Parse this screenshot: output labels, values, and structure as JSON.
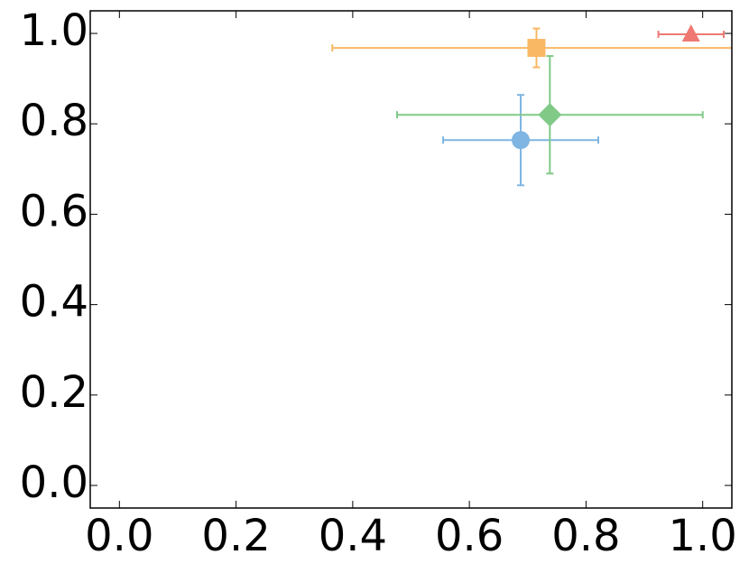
{
  "chart_data": {
    "type": "scatter",
    "xlim": [
      -0.05,
      1.05
    ],
    "ylim": [
      -0.05,
      1.05
    ],
    "xticks": [
      {
        "value": 0,
        "label": "0.0"
      },
      0.2,
      0.4,
      0.6,
      0.8,
      {
        "value": 1,
        "label": "1.0"
      }
    ],
    "yticks": [
      {
        "value": 0,
        "label": "0.0"
      },
      0.2,
      0.4,
      0.6,
      0.8,
      {
        "value": 1,
        "label": "1.0"
      }
    ],
    "grid": false,
    "series": [
      {
        "color": "#7fb5e2",
        "marker": "circle",
        "x": [
          0.688
        ],
        "values": [
          0.764
        ],
        "xerr": [
          0.133
        ],
        "yerr": [
          0.1
        ]
      },
      {
        "color": "#80c987",
        "marker": "diamond",
        "x": [
          0.738
        ],
        "values": [
          0.82
        ],
        "xerr": [
          0.262
        ],
        "yerr": [
          0.13
        ]
      },
      {
        "color": "#f9b864",
        "marker": "square",
        "x": [
          0.715
        ],
        "values": [
          0.968
        ],
        "xerr": [
          0.35
        ],
        "yerr": [
          0.043
        ]
      },
      {
        "color": "#ef7873",
        "marker": "triangle",
        "x": [
          0.98
        ],
        "values": [
          0.998
        ],
        "xerr": [
          0.056
        ]
      }
    ]
  }
}
